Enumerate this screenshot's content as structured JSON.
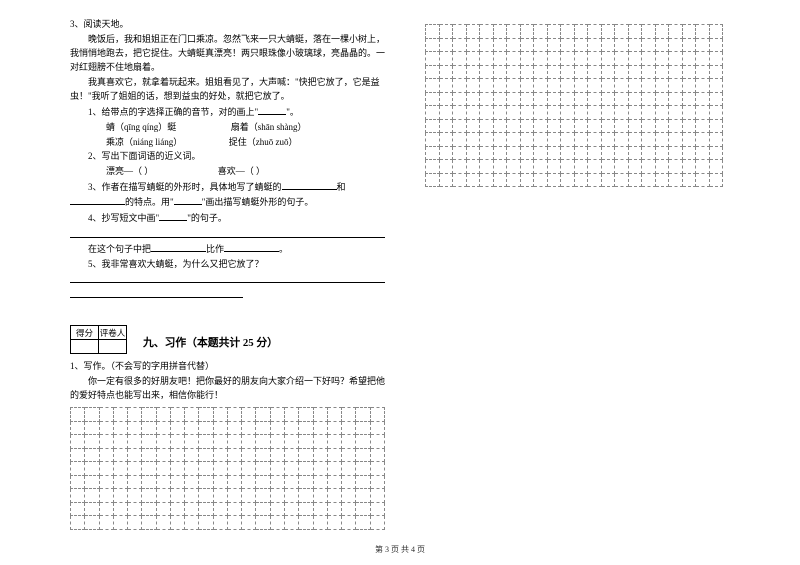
{
  "left": {
    "q3_title": "3、阅读天地。",
    "para1": "晚饭后，我和姐姐正在门口乘凉。忽然飞来一只大蜻蜓，落在一棵小树上，我悄悄地跑去，把它捉住。大蜻蜓真漂亮！两只眼珠像小玻璃球，亮晶晶的。一对红翅膀不住地扇着。",
    "para2": "我真喜欢它，就拿着玩起来。姐姐看见了，大声喊：\"快把它放了，它是益虫！\"我听了姐姐的话，想到益虫的好处，就把它放了。",
    "sub1": "1、给带点的字选择正确的音节，对的画上\"",
    "sub1_end": "\"。",
    "pinyin1a": "蜻（qīng    qíng）蜓",
    "pinyin1b": "扇着（shān  shàng）",
    "pinyin2a": "乘凉（niáng  liáng）",
    "pinyin2b": "捉住（zhuō  zuō）",
    "sub2": "2、写出下面词语的近义词。",
    "near1": "漂亮—（        ）",
    "near2": "喜欢—（        ）",
    "sub3a": "3、作者在描写蜻蜓的外形时，具体地写了蜻蜓的",
    "sub3b": "和",
    "sub3c": "的特点。用\"",
    "sub3d": "\"画出描写蜻蜓外形的句子。",
    "sub4": "4、抄写短文中画\"",
    "sub4_end": "\"的句子。",
    "sub5a": "在这个句子中把",
    "sub5b": "比作",
    "sub5c": "。",
    "sub6": "5、我非常喜欢大蜻蜓，为什么又把它放了？",
    "score_left": "得分",
    "score_right": "评卷人",
    "section9": "九、习作（本题共计 25 分）",
    "writing1": "1、写作。（不会写的字用拼音代替）",
    "writing2": "你一定有很多的好朋友吧！把你最好的朋友向大家介绍一下好吗？希望把他的爱好特点也能写出来，相信你能行！"
  },
  "footer": "第 3 页 共 4 页",
  "grid": {
    "left_rows": 9,
    "left_cols": 22,
    "right_rows": 12,
    "right_cols": 22
  }
}
